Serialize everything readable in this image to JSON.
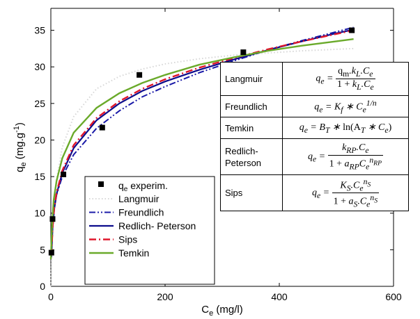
{
  "chart_data": {
    "type": "scatter",
    "xlabel_main": "C",
    "xlabel_sub": "e",
    "xlabel_unit": " (mg/l)",
    "ylabel_main": "q",
    "ylabel_sub": "e",
    "ylabel_unit": " (mg.g",
    "ylabel_sup": "-1",
    "ylabel_close": ")",
    "xlim": [
      0,
      600
    ],
    "ylim": [
      0,
      38
    ],
    "xticks": [
      0,
      200,
      400,
      600
    ],
    "yticks": [
      0,
      5,
      10,
      15,
      20,
      25,
      30,
      35
    ],
    "grid": false,
    "legend_position": "bottom-left",
    "experimental": {
      "name": "q",
      "name_sub": "e",
      "name_rest": " experim.",
      "x": [
        1,
        3,
        22,
        90,
        155,
        337,
        527
      ],
      "y": [
        4.6,
        9.2,
        15.3,
        21.7,
        28.9,
        32.0,
        35.0
      ]
    },
    "models": [
      {
        "name": "Langmuir",
        "color": "#d6d6d6",
        "x": [
          0,
          2,
          5,
          10,
          20,
          40,
          80,
          120,
          160,
          200,
          260,
          320,
          380,
          440,
          500,
          530
        ],
        "y": [
          0,
          5.5,
          10.2,
          14.6,
          19.0,
          23.2,
          27.0,
          28.7,
          29.7,
          30.4,
          31.1,
          31.6,
          31.9,
          32.2,
          32.4,
          32.5
        ]
      },
      {
        "name": "Freundlich",
        "color": "#1a1aa8",
        "x": [
          2,
          5,
          10,
          20,
          40,
          80,
          120,
          160,
          200,
          260,
          320,
          380,
          440,
          500,
          530
        ],
        "y": [
          7.8,
          10.4,
          12.5,
          15.0,
          18.0,
          21.6,
          24.0,
          25.9,
          27.3,
          29.2,
          30.8,
          32.3,
          33.6,
          34.8,
          35.4
        ]
      },
      {
        "name": "Redlich- Peterson",
        "color": "#0c0c8c",
        "x": [
          1,
          3,
          6,
          10,
          20,
          40,
          80,
          120,
          160,
          200,
          260,
          320,
          380,
          440,
          500,
          530
        ],
        "y": [
          4.0,
          8.0,
          10.6,
          12.6,
          15.5,
          18.9,
          22.7,
          25.0,
          26.7,
          28.0,
          29.6,
          31.0,
          32.3,
          33.5,
          34.6,
          35.1
        ]
      },
      {
        "name": "Sips",
        "color": "#e0162b",
        "x": [
          1,
          3,
          6,
          10,
          20,
          40,
          80,
          120,
          160,
          200,
          260,
          320,
          380,
          440,
          500,
          530
        ],
        "y": [
          4.2,
          8.0,
          10.8,
          12.8,
          15.8,
          19.3,
          23.0,
          25.3,
          27.0,
          28.3,
          29.9,
          31.2,
          32.4,
          33.5,
          34.5,
          35.0
        ]
      },
      {
        "name": "Temkin",
        "color": "#6aaa2a",
        "x": [
          0,
          2,
          5,
          10,
          20,
          40,
          80,
          120,
          160,
          200,
          260,
          320,
          380,
          440,
          500,
          530
        ],
        "y": [
          3.7,
          8.2,
          11.8,
          14.4,
          17.5,
          21.0,
          24.4,
          26.4,
          27.8,
          28.9,
          30.3,
          31.3,
          32.2,
          32.9,
          33.5,
          33.8
        ]
      }
    ]
  },
  "table": {
    "rows": [
      {
        "model": "Langmuir"
      },
      {
        "model": "Freundlich"
      },
      {
        "model": "Temkin"
      },
      {
        "model": "Redlich-\nPeterson"
      },
      {
        "model": "Sips"
      }
    ],
    "eq": {
      "q": "q",
      "e": "e",
      "eq": " = ",
      "qm": "q",
      "m": "m",
      "dot": ".",
      "k": "k",
      "L": "L",
      "C": "C",
      "one": "1 + ",
      "Kf": "K",
      "f": "f",
      "times": " ∗ ",
      "pow_n": "1/n",
      "BT": "B",
      "T": "T",
      "ln": " ln(A",
      "close": ")",
      "kRP": "k",
      "RP": "RP",
      "aRP": "a",
      "nRP": "n",
      "KS": "K",
      "S": "S",
      "aS": "a",
      "nS": "n"
    }
  }
}
